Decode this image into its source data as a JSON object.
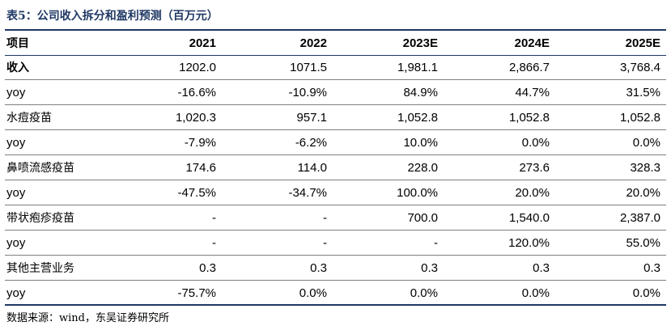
{
  "title": "表5：公司收入拆分和盈利预测（百万元）",
  "table": {
    "columns": [
      "项目",
      "2021",
      "2022",
      "2023E",
      "2024E",
      "2025E"
    ],
    "rows": [
      {
        "label": "收入",
        "values": [
          "1202.0",
          "1071.5",
          "1,981.1",
          "2,866.7",
          "3,768.4"
        ]
      },
      {
        "label": "yoy",
        "values": [
          "-16.6%",
          "-10.9%",
          "84.9%",
          "44.7%",
          "31.5%"
        ]
      },
      {
        "label": "水痘疫苗",
        "values": [
          "1,020.3",
          "957.1",
          "1,052.8",
          "1,052.8",
          "1,052.8"
        ]
      },
      {
        "label": "yoy",
        "values": [
          "-7.9%",
          "-6.2%",
          "10.0%",
          "0.0%",
          "0.0%"
        ]
      },
      {
        "label": "鼻喷流感疫苗",
        "values": [
          "174.6",
          "114.0",
          "228.0",
          "273.6",
          "328.3"
        ]
      },
      {
        "label": "yoy",
        "values": [
          "-47.5%",
          "-34.7%",
          "100.0%",
          "20.0%",
          "20.0%"
        ]
      },
      {
        "label": "带状疱疹疫苗",
        "values": [
          "-",
          "-",
          "700.0",
          "1,540.0",
          "2,387.0"
        ]
      },
      {
        "label": "yoy",
        "values": [
          "-",
          "-",
          "-",
          "120.0%",
          "55.0%"
        ]
      },
      {
        "label": "其他主营业务",
        "values": [
          "0.3",
          "0.3",
          "0.3",
          "0.3",
          "0.3"
        ]
      },
      {
        "label": "yoy",
        "values": [
          "-75.7%",
          "0.0%",
          "0.0%",
          "0.0%",
          "0.0%"
        ]
      }
    ]
  },
  "source": "数据来源：wind，东吴证券研究所",
  "colors": {
    "title": "#1f3864",
    "rule": "#1f3864",
    "row_separator": "#7f7f7f"
  }
}
